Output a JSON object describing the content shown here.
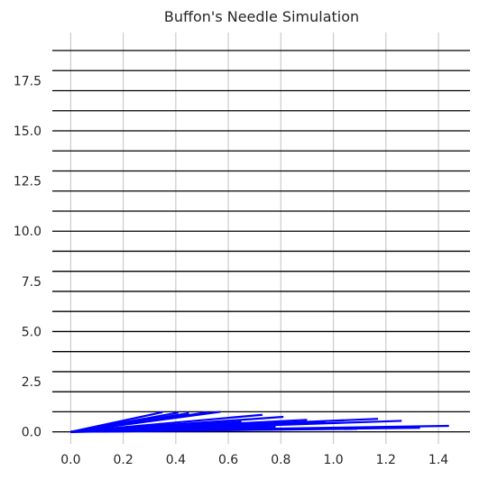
{
  "chart_data": {
    "type": "line",
    "title": "Buffon's Needle Simulation",
    "xlabel": "",
    "ylabel": "",
    "xlim": [
      -0.07,
      1.52
    ],
    "ylim": [
      -0.6,
      19.9
    ],
    "xticks": [
      0.0,
      0.2,
      0.4,
      0.6,
      0.8,
      1.0,
      1.2,
      1.4
    ],
    "xtick_labels": [
      "0.0",
      "0.2",
      "0.4",
      "0.6",
      "0.8",
      "1.0",
      "1.2",
      "1.4"
    ],
    "yticks": [
      0.0,
      2.5,
      5.0,
      7.5,
      10.0,
      12.5,
      15.0,
      17.5
    ],
    "ytick_labels": [
      "0.0",
      "2.5",
      "5.0",
      "7.5",
      "10.0",
      "12.5",
      "15.0",
      "17.5"
    ],
    "grid": true,
    "background_color": "#ffffff",
    "grid_color": "#cccccc",
    "floor_line_color": "#000000",
    "needle_color": "#0000ff",
    "floor_lines_y": [
      0,
      1,
      2,
      3,
      4,
      5,
      6,
      7,
      8,
      9,
      10,
      11,
      12,
      13,
      14,
      15,
      16,
      17,
      18,
      19
    ],
    "needles": [
      {
        "x": [
          0.0,
          1.44
        ],
        "y": [
          0.0,
          0.3
        ]
      },
      {
        "x": [
          0.0,
          1.33
        ],
        "y": [
          0.0,
          0.2
        ]
      },
      {
        "x": [
          0.0,
          1.26
        ],
        "y": [
          0.0,
          0.55
        ]
      },
      {
        "x": [
          0.0,
          1.17
        ],
        "y": [
          0.0,
          0.65
        ]
      },
      {
        "x": [
          0.0,
          1.09
        ],
        "y": [
          0.0,
          0.15
        ]
      },
      {
        "x": [
          0.0,
          0.97
        ],
        "y": [
          0.0,
          0.5
        ]
      },
      {
        "x": [
          0.0,
          0.9
        ],
        "y": [
          0.0,
          0.6
        ]
      },
      {
        "x": [
          0.0,
          0.85
        ],
        "y": [
          0.0,
          0.45
        ]
      },
      {
        "x": [
          0.0,
          0.81
        ],
        "y": [
          0.0,
          0.75
        ]
      },
      {
        "x": [
          0.0,
          0.78
        ],
        "y": [
          0.0,
          0.25
        ]
      },
      {
        "x": [
          0.0,
          0.73
        ],
        "y": [
          0.0,
          0.85
        ]
      },
      {
        "x": [
          0.0,
          0.65
        ],
        "y": [
          0.0,
          0.5
        ]
      },
      {
        "x": [
          0.0,
          0.57
        ],
        "y": [
          0.0,
          1.0
        ]
      },
      {
        "x": [
          0.0,
          0.52
        ],
        "y": [
          0.0,
          0.97
        ]
      },
      {
        "x": [
          0.0,
          0.5
        ],
        "y": [
          0.0,
          0.9
        ]
      },
      {
        "x": [
          0.0,
          0.45
        ],
        "y": [
          0.0,
          0.93
        ]
      },
      {
        "x": [
          0.0,
          0.41
        ],
        "y": [
          0.0,
          0.96
        ]
      },
      {
        "x": [
          0.0,
          0.35
        ],
        "y": [
          0.0,
          0.98
        ]
      },
      {
        "x": [
          0.0,
          0.3
        ],
        "y": [
          0.0,
          0.6
        ]
      }
    ]
  }
}
